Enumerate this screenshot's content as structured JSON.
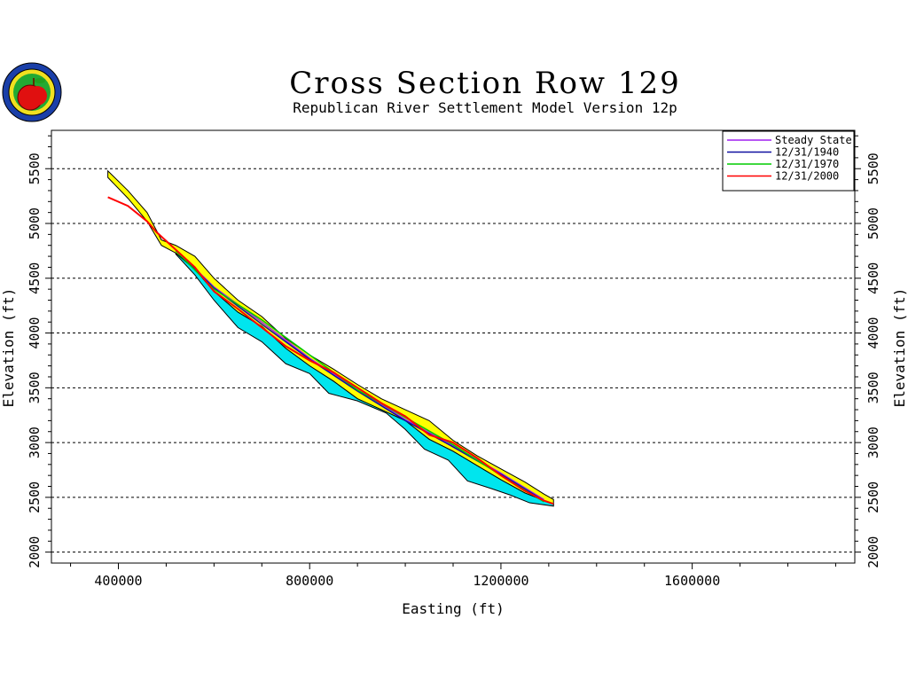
{
  "chart_data": {
    "type": "area",
    "title": "Cross Section Row 129",
    "subtitle": "Republican River Settlement Model Version 12p",
    "xlabel": "Easting (ft)",
    "ylabel": "Elevation (ft)",
    "xlim": [
      260000,
      1940000
    ],
    "ylim": [
      1900,
      5850
    ],
    "xticks": [
      400000,
      800000,
      1200000,
      1600000
    ],
    "yticks": [
      2000,
      2500,
      3000,
      3500,
      4000,
      4500,
      5000,
      5500
    ],
    "grid": "horizontal dashed at y ticks",
    "legend_position": "top-right",
    "colors": {
      "layer_upper": "#ffff00",
      "layer_lower": "#00e5ee",
      "outline": "#000000",
      "steady_state": "#a020f0",
      "y1940": "#1010a0",
      "y1970": "#00cc00",
      "y2000": "#ff0000"
    },
    "layers": [
      {
        "name": "",
        "color": "#ffff00",
        "top": [
          [
            378000,
            5480
          ],
          [
            420000,
            5300
          ],
          [
            460000,
            5100
          ],
          [
            490000,
            4850
          ],
          [
            520000,
            4800
          ],
          [
            560000,
            4700
          ],
          [
            600000,
            4500
          ],
          [
            650000,
            4300
          ],
          [
            700000,
            4150
          ],
          [
            750000,
            3950
          ],
          [
            800000,
            3800
          ],
          [
            850000,
            3670
          ],
          [
            900000,
            3530
          ],
          [
            950000,
            3400
          ],
          [
            1000000,
            3300
          ],
          [
            1050000,
            3200
          ],
          [
            1100000,
            3020
          ],
          [
            1150000,
            2880
          ],
          [
            1200000,
            2760
          ],
          [
            1250000,
            2640
          ],
          [
            1290000,
            2530
          ],
          [
            1310000,
            2480
          ]
        ],
        "bottom": [
          [
            378000,
            5420
          ],
          [
            420000,
            5230
          ],
          [
            460000,
            5020
          ],
          [
            490000,
            4800
          ],
          [
            520000,
            4730
          ],
          [
            560000,
            4580
          ],
          [
            600000,
            4380
          ],
          [
            650000,
            4190
          ],
          [
            700000,
            4060
          ],
          [
            750000,
            3860
          ],
          [
            800000,
            3700
          ],
          [
            850000,
            3560
          ],
          [
            900000,
            3400
          ],
          [
            950000,
            3300
          ],
          [
            1000000,
            3200
          ],
          [
            1050000,
            3030
          ],
          [
            1100000,
            2920
          ],
          [
            1150000,
            2790
          ],
          [
            1200000,
            2660
          ],
          [
            1250000,
            2540
          ],
          [
            1290000,
            2470
          ],
          [
            1310000,
            2440
          ]
        ]
      },
      {
        "name": "",
        "color": "#00e5ee",
        "top": [
          [
            520000,
            4730
          ],
          [
            560000,
            4580
          ],
          [
            600000,
            4380
          ],
          [
            650000,
            4190
          ],
          [
            700000,
            4060
          ],
          [
            750000,
            3860
          ],
          [
            800000,
            3700
          ],
          [
            850000,
            3560
          ],
          [
            900000,
            3400
          ],
          [
            950000,
            3300
          ],
          [
            1000000,
            3200
          ],
          [
            1050000,
            3030
          ],
          [
            1100000,
            2920
          ],
          [
            1150000,
            2790
          ],
          [
            1200000,
            2660
          ],
          [
            1250000,
            2540
          ],
          [
            1290000,
            2470
          ],
          [
            1310000,
            2440
          ]
        ],
        "bottom": [
          [
            520000,
            4720
          ],
          [
            560000,
            4530
          ],
          [
            600000,
            4300
          ],
          [
            650000,
            4050
          ],
          [
            700000,
            3920
          ],
          [
            750000,
            3720
          ],
          [
            800000,
            3630
          ],
          [
            840000,
            3450
          ],
          [
            900000,
            3380
          ],
          [
            960000,
            3270
          ],
          [
            1000000,
            3120
          ],
          [
            1040000,
            2940
          ],
          [
            1090000,
            2840
          ],
          [
            1130000,
            2650
          ],
          [
            1180000,
            2580
          ],
          [
            1220000,
            2520
          ],
          [
            1260000,
            2450
          ],
          [
            1310000,
            2420
          ]
        ]
      }
    ],
    "series": [
      {
        "name": "Steady State",
        "color": "#a020f0",
        "x": [
          520000,
          600000,
          700000,
          800000,
          900000,
          1000000,
          1100000,
          1200000,
          1290000
        ],
        "y": [
          4760,
          4420,
          4100,
          3770,
          3480,
          3210,
          2970,
          2720,
          2480
        ]
      },
      {
        "name": "12/31/1940",
        "color": "#1010a0",
        "x": [
          520000,
          600000,
          700000,
          800000,
          900000,
          1000000,
          1100000,
          1200000,
          1290000
        ],
        "y": [
          4760,
          4410,
          4080,
          3760,
          3470,
          3200,
          2960,
          2710,
          2470
        ]
      },
      {
        "name": "12/31/1970",
        "color": "#00cc00",
        "x": [
          520000,
          600000,
          700000,
          800000,
          900000,
          1000000,
          1100000,
          1200000,
          1290000
        ],
        "y": [
          4750,
          4400,
          4120,
          3800,
          3480,
          3230,
          2980,
          2700,
          2460
        ]
      },
      {
        "name": "12/31/2000",
        "color": "#ff0000",
        "x": [
          378000,
          420000,
          460000,
          480000,
          520000,
          560000,
          600000,
          650000,
          700000,
          750000,
          800000,
          850000,
          900000,
          950000,
          1000000,
          1050000,
          1100000,
          1150000,
          1200000,
          1250000,
          1290000,
          1310000
        ],
        "y": [
          5240,
          5160,
          5020,
          4920,
          4760,
          4600,
          4380,
          4220,
          4050,
          3880,
          3750,
          3640,
          3500,
          3360,
          3240,
          3070,
          3000,
          2860,
          2700,
          2560,
          2470,
          2440
        ]
      }
    ]
  }
}
